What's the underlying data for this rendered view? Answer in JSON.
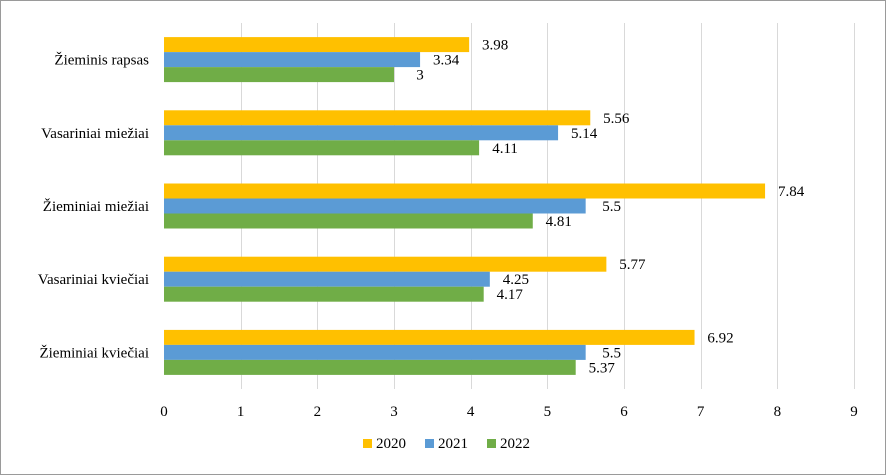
{
  "chart_data": {
    "type": "bar",
    "orientation": "horizontal",
    "categories": [
      "Žieminis rapsas",
      "Vasariniai miežiai",
      "Žieminiai miežiai",
      "Vasariniai kviečiai",
      "Žieminiai kviečiai"
    ],
    "series": [
      {
        "name": "2020",
        "color": "#FFC000",
        "values": [
          3.98,
          5.56,
          7.84,
          5.77,
          6.92
        ],
        "labels": [
          "3.98",
          "5.56",
          "7.84",
          "5.77",
          "6.92"
        ]
      },
      {
        "name": "2021",
        "color": "#5B9BD5",
        "values": [
          3.34,
          5.14,
          5.5,
          4.25,
          5.5
        ],
        "labels": [
          "3.34",
          "5.14",
          "5.5",
          "4.25",
          "5.5"
        ]
      },
      {
        "name": "2022",
        "color": "#70AD47",
        "values": [
          3,
          4.11,
          4.81,
          4.17,
          5.37
        ],
        "labels": [
          "3",
          "4.11",
          "4.81",
          "4.17",
          "5.37"
        ]
      }
    ],
    "xlim": [
      0,
      9
    ],
    "x_ticks": [
      "0",
      "1",
      "2",
      "3",
      "4",
      "5",
      "6",
      "7",
      "8",
      "9"
    ],
    "title": "",
    "xlabel": "",
    "ylabel": "",
    "grid": "vertical",
    "legend_position": "bottom"
  }
}
